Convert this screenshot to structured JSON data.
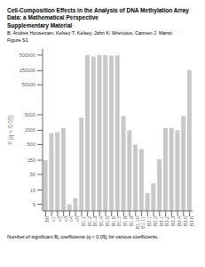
{
  "chart_data": {
    "type": "bar",
    "title": "Cell-Composition Effects in the Analysis of DNA Methylation Array Data: a Mathematical Perspective",
    "subtitle": "Supplementary Material",
    "annotations": [
      "B. Andres Houseman,  Kelsey T. Kelsey,  John K. Wrencius, Carmen J. Marsit",
      "Figure S1",
      "Number of significant B₁ coefficients (q < 0.05) for various coefficients."
    ],
    "ylabel": "# (q < 0.05)",
    "color": "#c8c8c8",
    "categories": [
      "B0",
      "c1",
      "c2",
      "c3",
      "c4",
      "c5",
      "B1.1",
      "B1.2",
      "B1.3",
      "B1.4",
      "B1.5",
      "B1.6",
      "B1.7",
      "B1.8",
      "B1.9",
      "B1.10",
      "B1.11",
      "B2.1",
      "B2.2",
      "B3.1",
      "B3.2",
      "B3.3",
      "B3.4",
      "B3.5",
      "B3.6"
    ],
    "values": [
      150,
      1200,
      1300,
      1800,
      5,
      8,
      4000,
      500000,
      450000,
      500000,
      500000,
      480000,
      490000,
      4500,
      1500,
      500,
      350,
      12,
      25,
      160,
      1800,
      1800,
      1500,
      4500,
      160000
    ],
    "ylim": [
      3,
      800000
    ],
    "yticks": [
      5,
      15,
      50,
      150,
      500,
      1500,
      5000,
      50000,
      150000,
      500000
    ],
    "log": "y",
    "grid": false
  }
}
